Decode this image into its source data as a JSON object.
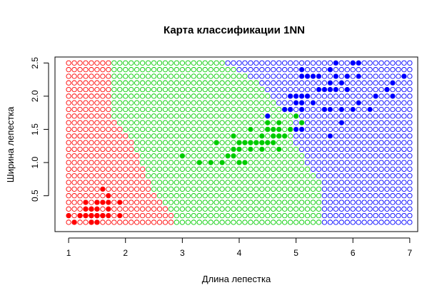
{
  "chart_data": {
    "type": "scatter",
    "title": "Карта классификации 1NN",
    "xlabel": "Длина лепестка",
    "ylabel": "Ширина лепестка",
    "xlim": [
      0.76,
      7.14
    ],
    "ylim": [
      -0.04,
      2.59
    ],
    "x_ticks": [
      "1",
      "2",
      "3",
      "4",
      "5",
      "6",
      "7"
    ],
    "y_ticks": [
      "0.5",
      "1.0",
      "1.5",
      "2.0",
      "2.5"
    ],
    "x_tick_values": [
      1,
      2,
      3,
      4,
      5,
      6,
      7
    ],
    "y_tick_values": [
      0.5,
      1.0,
      1.5,
      2.0,
      2.5
    ],
    "grid": false,
    "legend": "none",
    "colors": {
      "class1": "#ff0000",
      "class2": "#00cc00",
      "class3": "#0000ff"
    },
    "background_grid": {
      "marker": "open-circle",
      "x_start": 1.0,
      "x_step": 0.1,
      "x_count": 61,
      "y_start": 0.1,
      "y_step": 0.1,
      "y_count": 25,
      "boundary12": [
        [
          0.1,
          2.9
        ],
        [
          0.6,
          2.5
        ],
        [
          1.0,
          2.3
        ],
        [
          1.4,
          2.1
        ],
        [
          1.7,
          1.8
        ],
        [
          2.0,
          1.8
        ],
        [
          2.5,
          1.75
        ]
      ],
      "boundary23": [
        [
          0.1,
          5.45
        ],
        [
          0.5,
          5.45
        ],
        [
          0.75,
          5.4
        ],
        [
          1.0,
          5.2
        ],
        [
          1.3,
          5.0
        ],
        [
          1.6,
          4.95
        ],
        [
          1.75,
          4.9
        ],
        [
          1.9,
          4.7
        ],
        [
          2.2,
          4.35
        ],
        [
          2.5,
          3.8
        ]
      ]
    },
    "series": [
      {
        "class": "class1",
        "points": [
          [
            1.4,
            0.2
          ],
          [
            1.4,
            0.2
          ],
          [
            1.3,
            0.2
          ],
          [
            1.5,
            0.2
          ],
          [
            1.4,
            0.2
          ],
          [
            1.7,
            0.4
          ],
          [
            1.4,
            0.3
          ],
          [
            1.5,
            0.2
          ],
          [
            1.4,
            0.2
          ],
          [
            1.5,
            0.1
          ],
          [
            1.5,
            0.2
          ],
          [
            1.6,
            0.2
          ],
          [
            1.4,
            0.1
          ],
          [
            1.1,
            0.1
          ],
          [
            1.2,
            0.2
          ],
          [
            1.5,
            0.4
          ],
          [
            1.3,
            0.4
          ],
          [
            1.4,
            0.3
          ],
          [
            1.7,
            0.3
          ],
          [
            1.5,
            0.3
          ],
          [
            1.7,
            0.2
          ],
          [
            1.5,
            0.4
          ],
          [
            1.0,
            0.2
          ],
          [
            1.7,
            0.5
          ],
          [
            1.9,
            0.2
          ],
          [
            1.6,
            0.2
          ],
          [
            1.6,
            0.4
          ],
          [
            1.5,
            0.2
          ],
          [
            1.4,
            0.2
          ],
          [
            1.6,
            0.2
          ],
          [
            1.6,
            0.2
          ],
          [
            1.5,
            0.4
          ],
          [
            1.5,
            0.1
          ],
          [
            1.4,
            0.2
          ],
          [
            1.5,
            0.2
          ],
          [
            1.2,
            0.2
          ],
          [
            1.3,
            0.2
          ],
          [
            1.4,
            0.1
          ],
          [
            1.3,
            0.2
          ],
          [
            1.5,
            0.2
          ],
          [
            1.3,
            0.3
          ],
          [
            1.3,
            0.3
          ],
          [
            1.3,
            0.2
          ],
          [
            1.6,
            0.6
          ],
          [
            1.9,
            0.4
          ],
          [
            1.4,
            0.3
          ],
          [
            1.6,
            0.2
          ],
          [
            1.4,
            0.2
          ],
          [
            1.5,
            0.2
          ],
          [
            1.4,
            0.2
          ]
        ]
      },
      {
        "class": "class2",
        "points": [
          [
            4.7,
            1.4
          ],
          [
            4.5,
            1.5
          ],
          [
            4.9,
            1.5
          ],
          [
            4.0,
            1.3
          ],
          [
            4.6,
            1.5
          ],
          [
            4.5,
            1.3
          ],
          [
            4.7,
            1.6
          ],
          [
            3.3,
            1.0
          ],
          [
            4.6,
            1.3
          ],
          [
            3.9,
            1.4
          ],
          [
            3.5,
            1.0
          ],
          [
            4.2,
            1.5
          ],
          [
            4.0,
            1.0
          ],
          [
            4.7,
            1.4
          ],
          [
            3.6,
            1.3
          ],
          [
            4.4,
            1.4
          ],
          [
            4.5,
            1.5
          ],
          [
            4.1,
            1.0
          ],
          [
            4.5,
            1.5
          ],
          [
            3.9,
            1.1
          ],
          [
            4.8,
            1.8
          ],
          [
            4.0,
            1.3
          ],
          [
            4.9,
            1.5
          ],
          [
            4.7,
            1.2
          ],
          [
            4.3,
            1.3
          ],
          [
            4.4,
            1.4
          ],
          [
            4.8,
            1.4
          ],
          [
            5.0,
            1.7
          ],
          [
            4.5,
            1.5
          ],
          [
            3.5,
            1.0
          ],
          [
            3.8,
            1.1
          ],
          [
            3.7,
            1.0
          ],
          [
            3.9,
            1.2
          ],
          [
            5.1,
            1.6
          ],
          [
            4.5,
            1.5
          ],
          [
            4.5,
            1.6
          ],
          [
            4.7,
            1.5
          ],
          [
            4.4,
            1.3
          ],
          [
            4.1,
            1.3
          ],
          [
            4.0,
            1.3
          ],
          [
            4.4,
            1.2
          ],
          [
            4.6,
            1.4
          ],
          [
            4.0,
            1.2
          ],
          [
            3.3,
            1.0
          ],
          [
            4.2,
            1.3
          ],
          [
            4.2,
            1.2
          ],
          [
            4.2,
            1.3
          ],
          [
            4.3,
            1.3
          ],
          [
            3.0,
            1.1
          ],
          [
            4.1,
            1.3
          ]
        ]
      },
      {
        "class": "class3",
        "points": [
          [
            6.0,
            2.5
          ],
          [
            5.1,
            1.9
          ],
          [
            5.9,
            2.1
          ],
          [
            5.6,
            1.8
          ],
          [
            5.8,
            2.2
          ],
          [
            6.6,
            2.1
          ],
          [
            4.5,
            1.7
          ],
          [
            6.3,
            1.8
          ],
          [
            5.8,
            1.8
          ],
          [
            6.1,
            2.5
          ],
          [
            5.1,
            2.0
          ],
          [
            5.3,
            1.9
          ],
          [
            5.5,
            2.1
          ],
          [
            5.0,
            2.0
          ],
          [
            5.1,
            2.4
          ],
          [
            5.3,
            2.3
          ],
          [
            5.5,
            1.8
          ],
          [
            6.7,
            2.2
          ],
          [
            6.9,
            2.3
          ],
          [
            5.0,
            1.5
          ],
          [
            5.7,
            2.3
          ],
          [
            4.9,
            2.0
          ],
          [
            6.7,
            2.0
          ],
          [
            4.9,
            1.8
          ],
          [
            5.7,
            2.1
          ],
          [
            6.0,
            1.8
          ],
          [
            4.8,
            1.8
          ],
          [
            4.9,
            1.8
          ],
          [
            5.6,
            2.1
          ],
          [
            5.8,
            1.6
          ],
          [
            6.1,
            1.9
          ],
          [
            6.4,
            2.0
          ],
          [
            5.6,
            2.2
          ],
          [
            5.1,
            1.5
          ],
          [
            5.6,
            1.4
          ],
          [
            6.1,
            2.3
          ],
          [
            5.6,
            2.4
          ],
          [
            5.5,
            1.8
          ],
          [
            4.8,
            1.8
          ],
          [
            5.4,
            2.1
          ],
          [
            5.6,
            2.4
          ],
          [
            5.1,
            2.3
          ],
          [
            5.1,
            1.9
          ],
          [
            5.9,
            2.3
          ],
          [
            5.7,
            2.5
          ],
          [
            5.2,
            2.3
          ],
          [
            5.0,
            1.9
          ],
          [
            5.2,
            2.0
          ],
          [
            5.4,
            2.3
          ],
          [
            5.1,
            1.8
          ]
        ]
      }
    ]
  }
}
